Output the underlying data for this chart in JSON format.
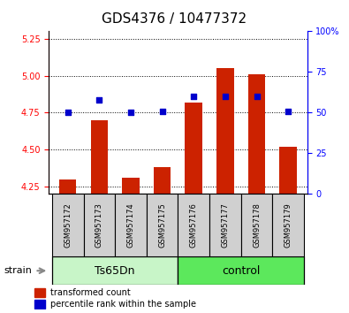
{
  "title": "GDS4376 / 10477372",
  "samples": [
    "GSM957172",
    "GSM957173",
    "GSM957174",
    "GSM957175",
    "GSM957176",
    "GSM957177",
    "GSM957178",
    "GSM957179"
  ],
  "red_values": [
    4.3,
    4.7,
    4.31,
    4.38,
    4.82,
    5.05,
    5.01,
    4.52
  ],
  "blue_percentiles": [
    50,
    58,
    50,
    51,
    60,
    60,
    60,
    51
  ],
  "ylim_left": [
    4.2,
    5.3
  ],
  "ylim_right": [
    0,
    100
  ],
  "yticks_left": [
    4.25,
    4.5,
    4.75,
    5.0,
    5.25
  ],
  "yticks_right": [
    0,
    25,
    50,
    75,
    100
  ],
  "groups": [
    {
      "label": "Ts65Dn",
      "start": 0,
      "end": 3,
      "color": "#c8f5c8"
    },
    {
      "label": "control",
      "start": 4,
      "end": 7,
      "color": "#5ce85c"
    }
  ],
  "bar_bottom": 4.2,
  "red_color": "#cc2200",
  "blue_color": "#0000cc",
  "legend_red": "transformed count",
  "legend_blue": "percentile rank within the sample",
  "xlabel_strain": "strain",
  "name_box_color": "#d0d0d0",
  "group_label_fontsize": 9,
  "sample_fontsize": 6,
  "tick_fontsize": 7,
  "title_fontsize": 11,
  "bar_width": 0.55
}
